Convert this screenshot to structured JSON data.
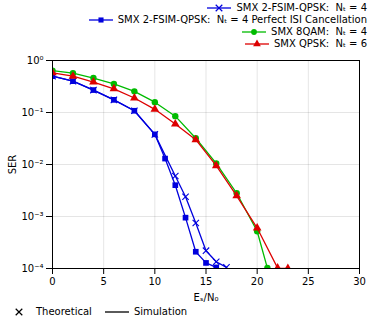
{
  "chart_data": {
    "type": "line",
    "xlabel": "Eₛ/N₀",
    "ylabel": "SER",
    "xlim": [
      0,
      30
    ],
    "ylim": [
      0.0001,
      1.0
    ],
    "xticks": [
      0,
      5,
      10,
      15,
      20,
      25,
      30
    ],
    "yticks": [
      {
        "value": 0.0001,
        "label": "10⁻⁴"
      },
      {
        "value": 0.001,
        "label": "10⁻³"
      },
      {
        "value": 0.01,
        "label": "10⁻²"
      },
      {
        "value": 0.1,
        "label": "10⁻¹"
      },
      {
        "value": 1.0,
        "label": "10⁰"
      }
    ],
    "log": "y",
    "grid": true,
    "legend": "upper right",
    "series": [
      {
        "name": "SMX 2-FSIM-QPSK:  Nₜ = 4",
        "color": "#0000dd",
        "marker": "x",
        "x": [
          0,
          2,
          4,
          6,
          8,
          10,
          12,
          13,
          14,
          15,
          16,
          17
        ],
        "values": [
          0.5,
          0.4,
          0.27,
          0.175,
          0.108,
          0.038,
          0.006,
          0.0024,
          0.00075,
          0.00022,
          0.000135,
          0.000105
        ]
      },
      {
        "name": "SMX 2-FSIM-QPSK:  Nₜ = 4 Perfect ISI Cancellation",
        "color": "#0000dd",
        "marker": "square",
        "x": [
          0,
          2,
          4,
          6,
          8,
          10,
          11,
          12,
          13,
          14,
          15,
          16
        ],
        "values": [
          0.5,
          0.4,
          0.27,
          0.175,
          0.108,
          0.038,
          0.013,
          0.004,
          0.00095,
          0.00021,
          0.000128,
          0.000105
        ]
      },
      {
        "name": "SMX 8QAM:  Nₜ = 4",
        "color": "#00bb00",
        "marker": "circle",
        "x": [
          0,
          2,
          4,
          6,
          8,
          10,
          12,
          14,
          16,
          18,
          20,
          21
        ],
        "values": [
          0.64,
          0.57,
          0.46,
          0.355,
          0.255,
          0.158,
          0.085,
          0.032,
          0.0105,
          0.0028,
          0.00052,
          0.000102
        ]
      },
      {
        "name": "SMX QPSK:  Nₜ = 6",
        "color": "#dd0000",
        "marker": "triangle",
        "x": [
          0,
          2,
          4,
          6,
          8,
          10,
          12,
          14,
          16,
          18,
          20,
          22,
          23
        ],
        "values": [
          0.58,
          0.5,
          0.385,
          0.285,
          0.19,
          0.115,
          0.06,
          0.03,
          0.0095,
          0.0025,
          0.0006,
          0.000102,
          0.0001
        ]
      }
    ],
    "annotations": [
      {
        "text": "Theoretical",
        "marker": "x",
        "color": "black"
      },
      {
        "text": "Simulation",
        "line_style": "solid",
        "color": "black"
      }
    ]
  }
}
